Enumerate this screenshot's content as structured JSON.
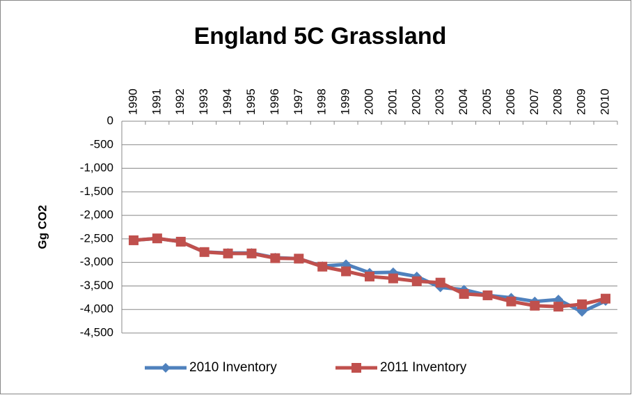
{
  "chart_data": {
    "type": "line",
    "title": "England 5C Grassland",
    "y_label": "Gg CO2",
    "categories": [
      "1990",
      "1991",
      "1992",
      "1993",
      "1994",
      "1995",
      "1996",
      "1997",
      "1998",
      "1999",
      "2000",
      "2001",
      "2002",
      "2003",
      "2004",
      "2005",
      "2006",
      "2007",
      "2008",
      "2009",
      "2010"
    ],
    "series": [
      {
        "name": "2010 Inventory",
        "color": "#4f81bd",
        "marker": "diamond",
        "values": [
          -2530,
          -2490,
          -2560,
          -2780,
          -2800,
          -2800,
          -2900,
          -2920,
          -3080,
          -3040,
          -3220,
          -3210,
          -3300,
          -3530,
          -3580,
          -3700,
          -3750,
          -3830,
          -3790,
          -4050,
          -3820
        ]
      },
      {
        "name": "2011 Inventory",
        "color": "#c0504d",
        "marker": "square",
        "values": [
          -2530,
          -2490,
          -2560,
          -2780,
          -2810,
          -2810,
          -2910,
          -2920,
          -3090,
          -3190,
          -3300,
          -3340,
          -3400,
          -3430,
          -3670,
          -3700,
          -3830,
          -3920,
          -3940,
          -3890,
          -3770
        ]
      }
    ],
    "ylim": [
      -4500,
      0
    ],
    "yticks": [
      0,
      -500,
      {
        "value": -1000,
        "label": "-1,000"
      },
      {
        "value": -1500,
        "label": "-1,500"
      },
      {
        "value": -2000,
        "label": "-2,000"
      },
      {
        "value": -2500,
        "label": "-2,500"
      },
      {
        "value": -3000,
        "label": "-3,000"
      },
      {
        "value": -3500,
        "label": "-3,500"
      },
      {
        "value": -4000,
        "label": "-4,000"
      },
      {
        "value": -4500,
        "label": "-4,500"
      }
    ],
    "grid": true,
    "legend": "bottom"
  }
}
